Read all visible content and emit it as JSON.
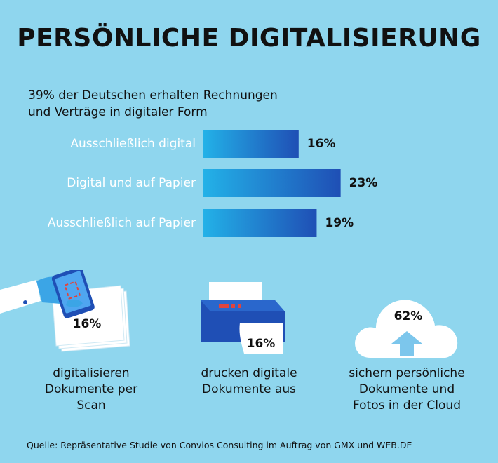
{
  "header": {
    "title": "PERSÖNLICHE DIGITALISIERUNG",
    "subtitle_line1": "39% der Deutschen erhalten Rechnungen",
    "subtitle_line2": "und Verträge in digitaler Form"
  },
  "chart_data": {
    "type": "bar",
    "orientation": "horizontal",
    "categories": [
      "Ausschließlich digital",
      "Digital und auf Papier",
      "Ausschließlich auf Papier"
    ],
    "values": [
      16,
      23,
      19
    ],
    "value_labels": [
      "16%",
      "23%",
      "19%"
    ],
    "unit": "%",
    "bar_gradient": [
      "#23b2e8",
      "#1f4fb5"
    ]
  },
  "stats": [
    {
      "value": "16%",
      "desc_lines": [
        "digitalisieren",
        "Dokumente per",
        "Scan"
      ],
      "icon": "phone-scan-icon"
    },
    {
      "value": "16%",
      "desc_lines": [
        "drucken digitale",
        "Dokumente aus"
      ],
      "icon": "printer-icon"
    },
    {
      "value": "62%",
      "desc_lines": [
        "sichern persönliche",
        "Dokumente und",
        "Fotos in der Cloud"
      ],
      "icon": "cloud-upload-icon"
    }
  ],
  "source": "Quelle: Repräsentative Studie von Convios Consulting im Auftrag von GMX und WEB.DE",
  "colors": {
    "background": "#8fd6ee",
    "accent_red": "#e0443d",
    "blue_dark": "#1f4fb5",
    "blue_light": "#23b2e8"
  }
}
